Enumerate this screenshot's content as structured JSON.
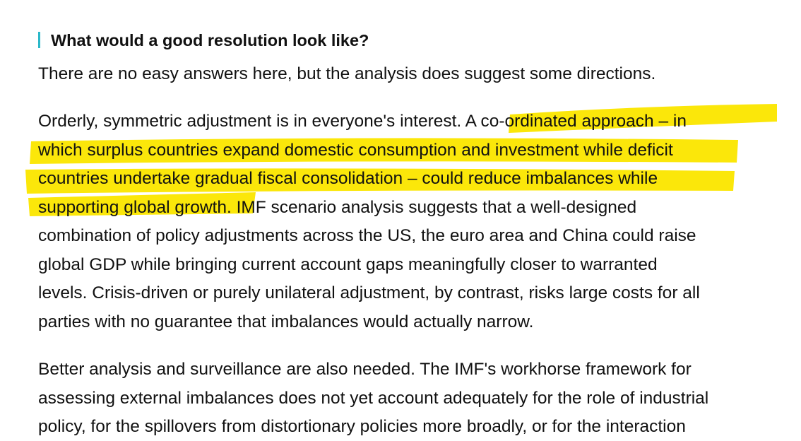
{
  "heading": "What would a good resolution look like?",
  "paragraphs": [
    [
      "There are no easy answers here, but the analysis does suggest some directions."
    ],
    [
      "Orderly, symmetric adjustment is in everyone's interest. A co-ordinated approach – in",
      "which surplus countries expand domestic consumption and investment while deficit",
      "countries undertake gradual fiscal consolidation – could reduce imbalances while",
      "supporting global growth. IMF scenario analysis suggests that a well-designed",
      "combination of policy adjustments across the US, the euro area and China could raise",
      "global GDP while bringing current account gaps meaningfully closer to warranted",
      "levels. Crisis-driven or purely unilateral adjustment, by contrast, risks large costs for all",
      "parties with no guarantee that imbalances would actually narrow."
    ],
    [
      "Better analysis and surveillance are also needed. The IMF's workhorse framework for",
      "assessing external imbalances does not yet account adequately for the role of industrial",
      "policy, for the spillovers from distortionary policies more broadly, or for the interaction"
    ]
  ]
}
